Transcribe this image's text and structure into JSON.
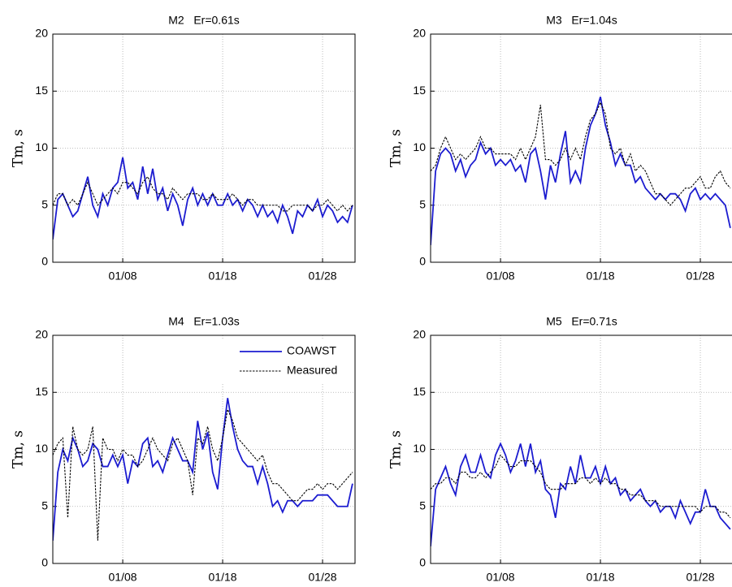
{
  "chart_data": [
    {
      "type": "line",
      "title": "M2   Er=0.61s",
      "ylabel": "Tm, s",
      "x": [
        1,
        1.5,
        2,
        2.5,
        3,
        3.5,
        4,
        4.5,
        5,
        5.5,
        6,
        6.5,
        7,
        7.5,
        8,
        8.5,
        9,
        9.5,
        10,
        10.5,
        11,
        11.5,
        12,
        12.5,
        13,
        13.5,
        14,
        14.5,
        15,
        15.5,
        16,
        16.5,
        17,
        17.5,
        18,
        18.5,
        19,
        19.5,
        20,
        20.5,
        21,
        21.5,
        22,
        22.5,
        23,
        23.5,
        24,
        24.5,
        25,
        25.5,
        26,
        26.5,
        27,
        27.5,
        28,
        28.5,
        29,
        29.5,
        30,
        30.5,
        31
      ],
      "series": [
        {
          "color": "#1c1cd0",
          "linestyle": "solid",
          "values": [
            2,
            5.5,
            6,
            5,
            4,
            4.5,
            6,
            7.5,
            5,
            4,
            6,
            5,
            6.5,
            7,
            9.2,
            6.5,
            7,
            5.5,
            8.4,
            6,
            8.2,
            5.5,
            6.5,
            4.5,
            6,
            5,
            3.2,
            5.5,
            6.5,
            5,
            6,
            5,
            6,
            5,
            5,
            6,
            5,
            5.5,
            4.5,
            5.5,
            5,
            4,
            5,
            4,
            4.5,
            3.5,
            5,
            4,
            2.5,
            4.5,
            4,
            5,
            4.5,
            5.5,
            4,
            5,
            4.5,
            3.5,
            4,
            3.5,
            5
          ]
        },
        {
          "color": "#000000",
          "linestyle": "dashed",
          "values": [
            5,
            6,
            6,
            5,
            5.5,
            5,
            6,
            7,
            6,
            5,
            5.5,
            6,
            6.5,
            6,
            7,
            7,
            6.5,
            6,
            7,
            7.5,
            6.5,
            6,
            6,
            5.5,
            6.5,
            6,
            5.5,
            6,
            6,
            6,
            5.5,
            5.5,
            6,
            5.5,
            5.5,
            5.5,
            6,
            5.5,
            5,
            5.5,
            5.5,
            5,
            5,
            5,
            5,
            5,
            4.5,
            4.5,
            5,
            5,
            5,
            5,
            4.5,
            5,
            5,
            5.5,
            5,
            4.5,
            5,
            4.5,
            5
          ]
        }
      ],
      "xlim": [
        1,
        31.25
      ],
      "xticks": [
        {
          "value": 8,
          "label": "01/08"
        },
        {
          "value": 18,
          "label": "01/18"
        },
        {
          "value": 28,
          "label": "01/28"
        }
      ],
      "ylim": [
        0,
        20
      ],
      "yticks": [
        0,
        5,
        10,
        15,
        20
      ],
      "grid": true
    },
    {
      "type": "line",
      "title": "M3   Er=1.04s",
      "ylabel": "Tm, s",
      "x": [
        1,
        1.5,
        2,
        2.5,
        3,
        3.5,
        4,
        4.5,
        5,
        5.5,
        6,
        6.5,
        7,
        7.5,
        8,
        8.5,
        9,
        9.5,
        10,
        10.5,
        11,
        11.5,
        12,
        12.5,
        13,
        13.5,
        14,
        14.5,
        15,
        15.5,
        16,
        16.5,
        17,
        17.5,
        18,
        18.5,
        19,
        19.5,
        20,
        20.5,
        21,
        21.5,
        22,
        22.5,
        23,
        23.5,
        24,
        24.5,
        25,
        25.5,
        26,
        26.5,
        27,
        27.5,
        28,
        28.5,
        29,
        29.5,
        30,
        30.5,
        31
      ],
      "series": [
        {
          "color": "#1c1cd0",
          "linestyle": "solid",
          "values": [
            1.5,
            8,
            9.5,
            10,
            9.5,
            8,
            9,
            7.5,
            8.5,
            9,
            10.5,
            9.5,
            10,
            8.5,
            9,
            8.5,
            9,
            8,
            8.5,
            7,
            9.5,
            10,
            8,
            5.5,
            8.5,
            7,
            9.5,
            11.5,
            7,
            8,
            7,
            10,
            12,
            13,
            14.5,
            12,
            10.5,
            8.5,
            9.5,
            8.5,
            8.5,
            7,
            7.5,
            6.5,
            6,
            5.5,
            6,
            5.5,
            6,
            6,
            5.5,
            4.5,
            6,
            6.5,
            5.5,
            6,
            5.5,
            6,
            5.5,
            5,
            3
          ]
        },
        {
          "color": "#000000",
          "linestyle": "dashed",
          "values": [
            8,
            8.5,
            10,
            11,
            10,
            9,
            9.5,
            9,
            9.5,
            10,
            11,
            10,
            10,
            9.5,
            9.5,
            9.5,
            9.5,
            9,
            10,
            9,
            10,
            11,
            13.8,
            9,
            9,
            8.5,
            9,
            10,
            9,
            10,
            9,
            11,
            12.5,
            13,
            14,
            13,
            10,
            9.5,
            10,
            8.5,
            9.5,
            8,
            8.5,
            8,
            7,
            6,
            6,
            5.5,
            5,
            5.5,
            6,
            6.5,
            6.5,
            7,
            7.5,
            6.5,
            6.5,
            7.5,
            8,
            7,
            6.5
          ]
        }
      ],
      "xlim": [
        1,
        31.25
      ],
      "xticks": [
        {
          "value": 8,
          "label": "01/08"
        },
        {
          "value": 18,
          "label": "01/18"
        },
        {
          "value": 28,
          "label": "01/28"
        }
      ],
      "ylim": [
        0,
        20
      ],
      "yticks": [
        0,
        5,
        10,
        15,
        20
      ],
      "grid": true
    },
    {
      "type": "line",
      "title": "M4   Er=1.03s",
      "ylabel": "Tm, s",
      "legend": "upper right",
      "x": [
        1,
        1.5,
        2,
        2.5,
        3,
        3.5,
        4,
        4.5,
        5,
        5.5,
        6,
        6.5,
        7,
        7.5,
        8,
        8.5,
        9,
        9.5,
        10,
        10.5,
        11,
        11.5,
        12,
        12.5,
        13,
        13.5,
        14,
        14.5,
        15,
        15.5,
        16,
        16.5,
        17,
        17.5,
        18,
        18.5,
        19,
        19.5,
        20,
        20.5,
        21,
        21.5,
        22,
        22.5,
        23,
        23.5,
        24,
        24.5,
        25,
        25.5,
        26,
        26.5,
        27,
        27.5,
        28,
        28.5,
        29,
        29.5,
        30,
        30.5,
        31
      ],
      "series": [
        {
          "name": "COAWST",
          "color": "#1c1cd0",
          "linestyle": "solid",
          "values": [
            2,
            8,
            10,
            9,
            11,
            10,
            8.5,
            9,
            10.5,
            10,
            8.5,
            8.5,
            9.5,
            8.5,
            9.5,
            7,
            9,
            8.5,
            10.5,
            11,
            8.5,
            9,
            8,
            9.5,
            11,
            10,
            9,
            9,
            8,
            12.5,
            10,
            11.5,
            8,
            6.5,
            11,
            14.5,
            12,
            10,
            9,
            8.5,
            8.5,
            7,
            8.5,
            7,
            5,
            5.5,
            4.5,
            5.5,
            5.5,
            5,
            5.5,
            5.5,
            5.5,
            6,
            6,
            6,
            5.5,
            5,
            5,
            5,
            7
          ]
        },
        {
          "name": "Measured",
          "color": "#000000",
          "linestyle": "dashed",
          "values": [
            9.5,
            10.5,
            11,
            4,
            12,
            10,
            9.5,
            10,
            12,
            2,
            11,
            10,
            10,
            9,
            10,
            9.5,
            9.5,
            8.5,
            9,
            10,
            11,
            10,
            9.5,
            9,
            10.5,
            11,
            10,
            9,
            6,
            11,
            10.5,
            12,
            10,
            9,
            11,
            13.5,
            12.5,
            11,
            10.5,
            10,
            9.5,
            9,
            9.5,
            8,
            7,
            7,
            6.5,
            6,
            5.5,
            5.5,
            6,
            6.5,
            6.5,
            7,
            6.5,
            7,
            7,
            6.5,
            7,
            7.5,
            8
          ]
        }
      ],
      "xlim": [
        1,
        31.25
      ],
      "xticks": [
        {
          "value": 8,
          "label": "01/08"
        },
        {
          "value": 18,
          "label": "01/18"
        },
        {
          "value": 28,
          "label": "01/28"
        }
      ],
      "ylim": [
        0,
        20
      ],
      "yticks": [
        0,
        5,
        10,
        15,
        20
      ],
      "grid": true
    },
    {
      "type": "line",
      "title": "M5   Er=0.71s",
      "ylabel": "Tm, s",
      "x": [
        1,
        1.5,
        2,
        2.5,
        3,
        3.5,
        4,
        4.5,
        5,
        5.5,
        6,
        6.5,
        7,
        7.5,
        8,
        8.5,
        9,
        9.5,
        10,
        10.5,
        11,
        11.5,
        12,
        12.5,
        13,
        13.5,
        14,
        14.5,
        15,
        15.5,
        16,
        16.5,
        17,
        17.5,
        18,
        18.5,
        19,
        19.5,
        20,
        20.5,
        21,
        21.5,
        22,
        22.5,
        23,
        23.5,
        24,
        24.5,
        25,
        25.5,
        26,
        26.5,
        27,
        27.5,
        28,
        28.5,
        29,
        29.5,
        30,
        30.5,
        31
      ],
      "series": [
        {
          "color": "#1c1cd0",
          "linestyle": "solid",
          "values": [
            1.5,
            6.5,
            7.5,
            8.5,
            7,
            6,
            8.5,
            9.5,
            8,
            8,
            9.5,
            8,
            7.5,
            9.5,
            10.5,
            9.5,
            8,
            9,
            10.5,
            8.5,
            10.5,
            8,
            9,
            6.5,
            6,
            4,
            7,
            6.5,
            8.5,
            7,
            9.5,
            7.5,
            7.5,
            8.5,
            7,
            8.5,
            7,
            7.5,
            6,
            6.5,
            5.5,
            6,
            6.5,
            5.5,
            5,
            5.5,
            4.5,
            5,
            5,
            4,
            5.5,
            4.5,
            3.5,
            4.5,
            4.5,
            6.5,
            5,
            5,
            4,
            3.5,
            3
          ]
        },
        {
          "color": "#000000",
          "linestyle": "dashed",
          "values": [
            6.5,
            7,
            7,
            7.5,
            7.5,
            7,
            8,
            8,
            7.5,
            7.5,
            8,
            7.5,
            8,
            8.5,
            9.5,
            9,
            8.5,
            8.5,
            9,
            9,
            9,
            8.5,
            8,
            7,
            6.5,
            6.5,
            6.5,
            7,
            7,
            7,
            7.5,
            7.5,
            7,
            7.5,
            7,
            7.5,
            7,
            7,
            6.5,
            6.5,
            6,
            6,
            6,
            5.5,
            5.5,
            5.5,
            5,
            5,
            5,
            5,
            5,
            5,
            5,
            5,
            4.5,
            5,
            5,
            5,
            4.5,
            4.5,
            4
          ]
        }
      ],
      "xlim": [
        1,
        31.25
      ],
      "xticks": [
        {
          "value": 8,
          "label": "01/08"
        },
        {
          "value": 18,
          "label": "01/18"
        },
        {
          "value": 28,
          "label": "01/28"
        }
      ],
      "ylim": [
        0,
        20
      ],
      "yticks": [
        0,
        5,
        10,
        15,
        20
      ],
      "grid": true
    }
  ]
}
